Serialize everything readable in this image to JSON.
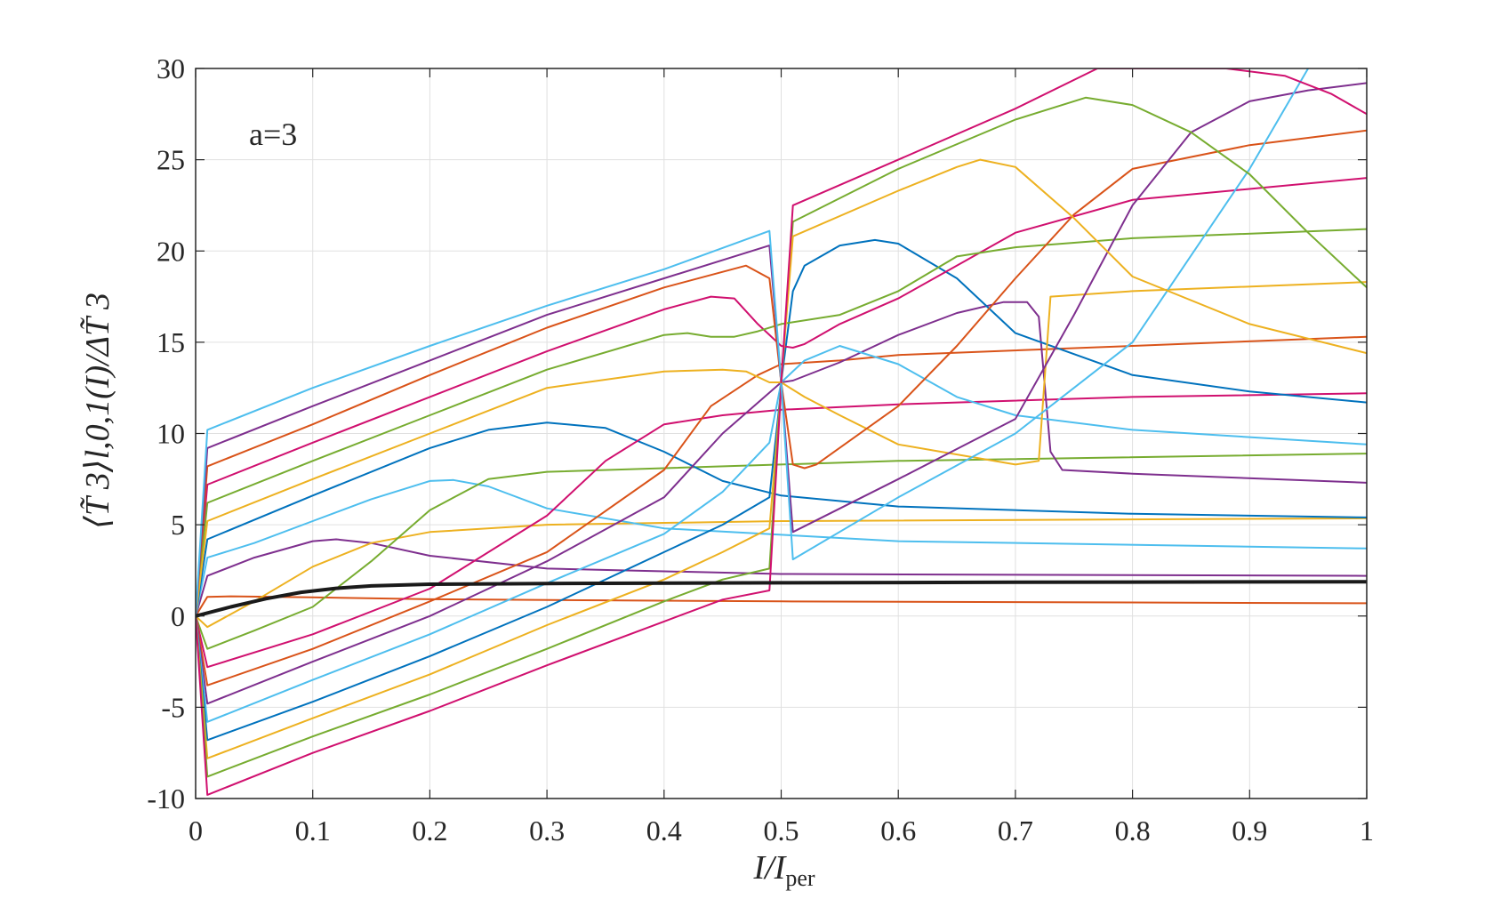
{
  "chart_data": {
    "type": "line",
    "annotation": "a=3",
    "xlabel": {
      "main": "I/I",
      "sub": "per"
    },
    "ylabel": "⟨T̃ 3⟩l,0,1(I)/ΔT̃ 3",
    "xlim": [
      0,
      1
    ],
    "ylim": [
      -10,
      30
    ],
    "x_ticks": [
      "0",
      "0.1",
      "0.2",
      "0.3",
      "0.4",
      "0.5",
      "0.6",
      "0.7",
      "0.8",
      "0.9",
      "1"
    ],
    "y_ticks": [
      "-10",
      "-5",
      "0",
      "5",
      "10",
      "15",
      "20",
      "25",
      "30"
    ],
    "grid": true,
    "colors": {
      "blue": "#0072BD",
      "orange": "#D95319",
      "yellow": "#EDB120",
      "purple": "#7E2F8E",
      "green": "#77AC30",
      "cyan": "#4DBEEE",
      "magenta": "#D0106F",
      "black": "#1a1a1a"
    },
    "series": [
      {
        "color": "black",
        "width": 4,
        "x": [
          0,
          0.03,
          0.06,
          0.09,
          0.12,
          0.15,
          0.2,
          0.3,
          0.5,
          0.7,
          1
        ],
        "y": [
          0,
          0.5,
          0.95,
          1.3,
          1.52,
          1.65,
          1.74,
          1.78,
          1.82,
          1.85,
          1.88
        ]
      },
      {
        "color": "orange",
        "x": [
          0,
          0.01,
          0.03,
          0.1,
          0.2,
          0.5,
          1
        ],
        "y": [
          0,
          1.05,
          1.08,
          1.02,
          0.92,
          0.8,
          0.7
        ]
      },
      {
        "color": "purple",
        "x": [
          0,
          0.01,
          0.05,
          0.1,
          0.12,
          0.15,
          0.2,
          0.3,
          0.5,
          1
        ],
        "y": [
          0,
          2.2,
          3.2,
          4.1,
          4.2,
          4.0,
          3.3,
          2.6,
          2.3,
          2.2
        ]
      },
      {
        "color": "yellow",
        "x": [
          0,
          0.01,
          0.05,
          0.1,
          0.15,
          0.2,
          0.3,
          0.5,
          1
        ],
        "y": [
          0,
          -0.6,
          0.8,
          2.7,
          4.0,
          4.6,
          5.0,
          5.2,
          5.35
        ]
      },
      {
        "color": "cyan",
        "x": [
          0,
          0.01,
          0.05,
          0.1,
          0.15,
          0.2,
          0.22,
          0.25,
          0.3,
          0.4,
          0.6,
          1
        ],
        "y": [
          0,
          3.2,
          4.0,
          5.2,
          6.4,
          7.4,
          7.45,
          7.1,
          5.9,
          4.8,
          4.1,
          3.7
        ]
      },
      {
        "color": "green",
        "x": [
          0,
          0.01,
          0.05,
          0.1,
          0.15,
          0.2,
          0.25,
          0.3,
          0.4,
          0.6,
          1
        ],
        "y": [
          0,
          -1.8,
          -0.8,
          0.5,
          3.0,
          5.8,
          7.5,
          7.9,
          8.1,
          8.5,
          8.9
        ]
      },
      {
        "color": "blue",
        "x": [
          0,
          0.01,
          0.1,
          0.2,
          0.25,
          0.3,
          0.35,
          0.4,
          0.45,
          0.5,
          0.6,
          0.8,
          1
        ],
        "y": [
          0,
          4.2,
          6.6,
          9.2,
          10.2,
          10.6,
          10.3,
          9.0,
          7.4,
          6.6,
          6.0,
          5.6,
          5.4
        ]
      },
      {
        "color": "magenta",
        "x": [
          0,
          0.01,
          0.1,
          0.2,
          0.3,
          0.35,
          0.4,
          0.45,
          0.5,
          0.6,
          0.8,
          1
        ],
        "y": [
          0,
          -2.8,
          -1.0,
          1.5,
          5.5,
          8.5,
          10.5,
          11.0,
          11.3,
          11.6,
          12.0,
          12.2
        ]
      },
      {
        "color": "orange",
        "x": [
          0,
          0.01,
          0.1,
          0.2,
          0.3,
          0.4,
          0.44,
          0.48,
          0.5,
          0.55,
          0.6,
          0.8,
          1
        ],
        "y": [
          0,
          -3.8,
          -1.8,
          0.8,
          3.5,
          8.0,
          11.5,
          13.2,
          13.8,
          14.0,
          14.3,
          14.8,
          15.3
        ]
      },
      {
        "color": "purple",
        "x": [
          0,
          0.01,
          0.1,
          0.2,
          0.3,
          0.4,
          0.45,
          0.5,
          0.51,
          0.55,
          0.6,
          0.65,
          0.69,
          0.7,
          0.71,
          0.72,
          0.73,
          0.74,
          0.8,
          1
        ],
        "y": [
          0,
          -4.8,
          -2.5,
          0.0,
          3.0,
          6.5,
          10.0,
          12.8,
          12.9,
          13.9,
          15.4,
          16.6,
          17.2,
          17.2,
          17.2,
          16.4,
          9.0,
          8.0,
          7.8,
          7.3
        ]
      },
      {
        "color": "cyan",
        "x": [
          0,
          0.01,
          0.1,
          0.2,
          0.3,
          0.4,
          0.45,
          0.49,
          0.5,
          0.52,
          0.55,
          0.6,
          0.65,
          0.7,
          0.8,
          1
        ],
        "y": [
          0,
          -5.8,
          -3.5,
          -1.0,
          1.8,
          4.5,
          6.8,
          9.5,
          12.8,
          14.0,
          14.8,
          13.8,
          12.0,
          11.0,
          10.2,
          9.4
        ]
      },
      {
        "color": "blue",
        "x": [
          0,
          0.01,
          0.1,
          0.2,
          0.3,
          0.4,
          0.45,
          0.49,
          0.5
        ],
        "y": [
          0,
          -6.8,
          -4.7,
          -2.2,
          0.5,
          3.5,
          5.0,
          6.5,
          12.5
        ]
      },
      {
        "color": "yellow",
        "x": [
          0,
          0.01,
          0.1,
          0.2,
          0.3,
          0.4,
          0.45,
          0.49,
          0.5
        ],
        "y": [
          0,
          -7.8,
          -5.6,
          -3.2,
          -0.5,
          2.0,
          3.5,
          4.8,
          12.5
        ]
      },
      {
        "color": "green",
        "x": [
          0,
          0.01,
          0.1,
          0.2,
          0.3,
          0.4,
          0.45,
          0.49,
          0.5
        ],
        "y": [
          0,
          -8.8,
          -6.6,
          -4.3,
          -1.8,
          0.8,
          2.0,
          2.6,
          12.6
        ]
      },
      {
        "color": "magenta",
        "x": [
          0,
          0.01,
          0.1,
          0.2,
          0.3,
          0.4,
          0.45,
          0.49,
          0.5
        ],
        "y": [
          0,
          -9.8,
          -7.5,
          -5.2,
          -2.7,
          -0.3,
          0.9,
          1.4,
          12.6
        ]
      },
      {
        "color": "blue",
        "x": [
          0.5,
          0.51,
          0.52,
          0.55,
          0.58,
          0.6,
          0.65,
          0.7,
          0.8,
          0.9,
          1
        ],
        "y": [
          12.8,
          17.8,
          19.2,
          20.3,
          20.6,
          20.4,
          18.5,
          15.5,
          13.2,
          12.3,
          11.7
        ]
      },
      {
        "color": "magenta",
        "x": [
          0,
          0.01,
          0.1,
          0.2,
          0.3,
          0.4,
          0.44,
          0.46,
          0.48,
          0.5,
          0.51,
          0.52,
          0.55,
          0.6,
          0.7,
          0.8,
          1
        ],
        "y": [
          0,
          7.2,
          9.5,
          12.0,
          14.5,
          16.8,
          17.5,
          17.4,
          16.0,
          14.8,
          14.7,
          14.9,
          16.0,
          17.4,
          21.0,
          22.8,
          24.0
        ]
      },
      {
        "color": "green",
        "x": [
          0,
          0.01,
          0.1,
          0.2,
          0.3,
          0.4,
          0.42,
          0.44,
          0.46,
          0.48,
          0.5,
          0.55,
          0.6,
          0.65,
          0.7,
          0.8,
          1
        ],
        "y": [
          0,
          6.2,
          8.5,
          11.0,
          13.5,
          15.4,
          15.5,
          15.3,
          15.3,
          15.6,
          16.0,
          16.5,
          17.8,
          19.7,
          20.2,
          20.7,
          21.2
        ]
      },
      {
        "color": "yellow",
        "x": [
          0,
          0.01,
          0.1,
          0.2,
          0.3,
          0.4,
          0.45,
          0.47,
          0.49,
          0.5,
          0.52,
          0.55,
          0.6,
          0.7,
          0.72,
          0.73,
          0.8,
          1
        ],
        "y": [
          0,
          5.2,
          7.5,
          10.0,
          12.5,
          13.4,
          13.5,
          13.4,
          12.8,
          12.8,
          12.0,
          11.0,
          9.4,
          8.3,
          8.5,
          17.5,
          17.8,
          18.3
        ]
      },
      {
        "color": "orange",
        "x": [
          0,
          0.01,
          0.1,
          0.2,
          0.3,
          0.4,
          0.47,
          0.49,
          0.5,
          0.51,
          0.52,
          0.53,
          0.6,
          0.65,
          0.7,
          0.75,
          0.8,
          0.9,
          1
        ],
        "y": [
          0,
          8.2,
          10.5,
          13.2,
          15.8,
          18.0,
          19.2,
          18.5,
          12.8,
          8.3,
          8.1,
          8.3,
          11.5,
          14.8,
          18.5,
          22.0,
          24.5,
          25.8,
          26.6
        ]
      },
      {
        "color": "purple",
        "x": [
          0,
          0.01,
          0.1,
          0.2,
          0.3,
          0.4,
          0.49,
          0.5,
          0.51,
          0.6,
          0.7,
          0.75,
          0.8,
          0.85,
          0.9,
          0.95,
          1
        ],
        "y": [
          0,
          9.2,
          11.5,
          14.0,
          16.5,
          18.5,
          20.3,
          12.8,
          4.6,
          7.5,
          10.8,
          16.5,
          22.5,
          26.5,
          28.2,
          28.8,
          29.2
        ]
      },
      {
        "color": "cyan",
        "x": [
          0,
          0.01,
          0.1,
          0.2,
          0.3,
          0.4,
          0.49,
          0.5,
          0.51,
          0.6,
          0.7,
          0.8,
          0.9,
          0.95
        ],
        "y": [
          0,
          10.2,
          12.5,
          14.8,
          17.0,
          19.0,
          21.1,
          12.8,
          3.1,
          6.5,
          10.0,
          15.0,
          24.5,
          30.0
        ]
      },
      {
        "color": "green",
        "x": [
          0.5,
          0.51,
          0.6,
          0.7,
          0.76,
          0.8,
          0.85,
          0.9,
          0.95,
          1
        ],
        "y": [
          12.8,
          21.6,
          24.5,
          27.2,
          28.4,
          28.0,
          26.5,
          24.2,
          21.0,
          18.0
        ]
      },
      {
        "color": "yellow",
        "x": [
          0.5,
          0.51,
          0.6,
          0.65,
          0.67,
          0.7,
          0.75,
          0.8,
          0.9,
          1
        ],
        "y": [
          12.8,
          20.8,
          23.3,
          24.6,
          25.0,
          24.6,
          21.8,
          18.6,
          16.0,
          14.4
        ]
      },
      {
        "color": "magenta",
        "x": [
          0.5,
          0.51,
          0.6,
          0.7,
          0.77,
          0.88,
          0.93,
          0.97,
          1
        ],
        "y": [
          12.8,
          22.5,
          25.0,
          27.8,
          30.0,
          30.0,
          29.6,
          28.6,
          27.5
        ]
      }
    ]
  }
}
